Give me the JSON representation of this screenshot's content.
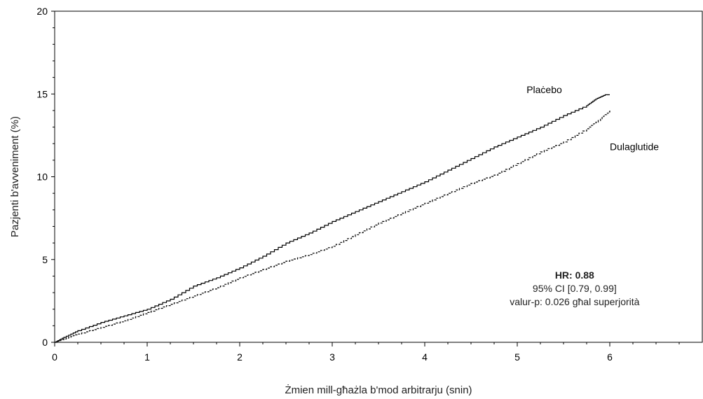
{
  "chart_data": {
    "type": "line",
    "xlabel": "Żmien mill-għażla b'mod arbitrarju (snin)",
    "ylabel": "Pazjenti b'avveniment (%)",
    "xlim": [
      0,
      7
    ],
    "ylim": [
      0,
      20
    ],
    "x_ticks": [
      0,
      1,
      2,
      3,
      4,
      5,
      6
    ],
    "y_ticks": [
      0,
      5,
      10,
      15,
      20
    ],
    "grid": false,
    "series": [
      {
        "name": "Plaċebo",
        "style": "solid",
        "color": "#000000",
        "x": [
          0,
          0.1,
          0.25,
          0.5,
          0.75,
          1.0,
          1.25,
          1.5,
          1.75,
          2.0,
          2.25,
          2.5,
          2.75,
          3.0,
          3.25,
          3.5,
          3.75,
          4.0,
          4.25,
          4.5,
          4.75,
          5.0,
          5.25,
          5.5,
          5.75,
          5.85,
          5.95,
          6.0
        ],
        "y": [
          0,
          0.3,
          0.7,
          1.2,
          1.6,
          2.0,
          2.6,
          3.4,
          3.9,
          4.5,
          5.2,
          6.0,
          6.6,
          7.3,
          7.9,
          8.5,
          9.1,
          9.7,
          10.4,
          11.1,
          11.8,
          12.4,
          13.0,
          13.7,
          14.3,
          14.7,
          14.95,
          14.95
        ]
      },
      {
        "name": "Dulaglutide",
        "style": "dashed",
        "color": "#000000",
        "x": [
          0,
          0.1,
          0.25,
          0.5,
          0.75,
          1.0,
          1.25,
          1.5,
          1.75,
          2.0,
          2.25,
          2.5,
          2.75,
          3.0,
          3.25,
          3.5,
          3.75,
          4.0,
          4.25,
          4.5,
          4.75,
          5.0,
          5.25,
          5.5,
          5.75,
          5.9,
          6.0
        ],
        "y": [
          0,
          0.2,
          0.5,
          0.9,
          1.3,
          1.8,
          2.3,
          2.8,
          3.3,
          3.9,
          4.4,
          4.9,
          5.3,
          5.8,
          6.5,
          7.2,
          7.8,
          8.4,
          9.0,
          9.6,
          10.1,
          10.8,
          11.5,
          12.1,
          12.9,
          13.5,
          14.0
        ]
      }
    ],
    "annotations": {
      "hr": "HR: 0.88",
      "ci": "95% CI [0.79, 0.99]",
      "pvalue": "valur-p: 0.026 għal superjorità"
    }
  }
}
